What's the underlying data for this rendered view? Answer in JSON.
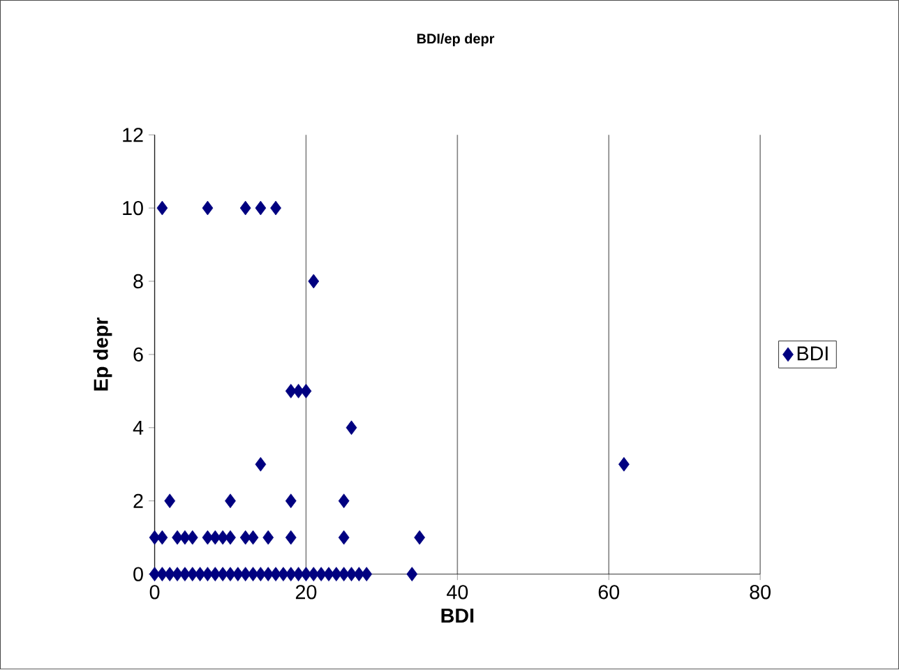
{
  "chart_data": {
    "type": "scatter",
    "title": "BDI/ep depr",
    "xlabel": "BDI",
    "ylabel": "Ep depr",
    "series": [
      {
        "name": "BDI",
        "color": "#000080",
        "x": [
          0,
          1,
          2,
          3,
          4,
          5,
          6,
          7,
          8,
          9,
          10,
          11,
          12,
          13,
          14,
          15,
          16,
          17,
          18,
          19,
          20,
          21,
          22,
          23,
          24,
          25,
          26,
          27,
          28,
          34,
          0,
          1,
          3,
          4,
          5,
          7,
          8,
          9,
          10,
          12,
          13,
          15,
          18,
          25,
          35,
          2,
          10,
          18,
          25,
          14,
          62,
          26,
          18,
          19,
          20,
          21,
          1,
          7,
          12,
          14,
          16
        ],
        "values": [
          0,
          0,
          0,
          0,
          0,
          0,
          0,
          0,
          0,
          0,
          0,
          0,
          0,
          0,
          0,
          0,
          0,
          0,
          0,
          0,
          0,
          0,
          0,
          0,
          0,
          0,
          0,
          0,
          0,
          0,
          1,
          1,
          1,
          1,
          1,
          1,
          1,
          1,
          1,
          1,
          1,
          1,
          1,
          1,
          1,
          2,
          2,
          2,
          2,
          3,
          3,
          4,
          5,
          5,
          5,
          8,
          10,
          10,
          10,
          10,
          10
        ]
      }
    ],
    "xlim": [
      0,
      80
    ],
    "xticks": [
      0,
      20,
      40,
      60,
      80
    ],
    "ylim": [
      0,
      12
    ],
    "yticks": [
      0,
      2,
      4,
      6,
      8,
      10,
      12
    ],
    "grid": "x",
    "legend": "right",
    "marker": "diamond"
  }
}
